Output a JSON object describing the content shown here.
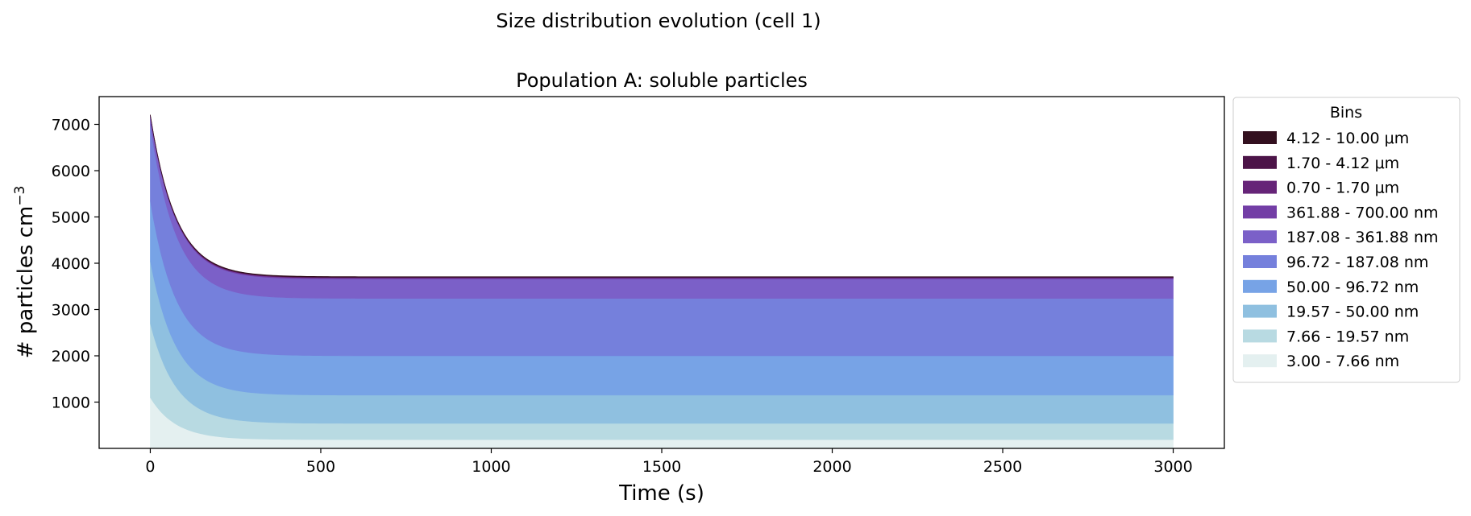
{
  "chart_data": {
    "type": "area",
    "stacked": true,
    "suptitle": "Size distribution evolution (cell 1)",
    "title": "Population A: soluble particles",
    "xlabel": "Time (s)",
    "ylabel_main": "# particles cm",
    "ylabel_sup": "−3",
    "xlim": [
      -150,
      3150
    ],
    "ylim": [
      0,
      7600
    ],
    "xticks": [
      0,
      500,
      1000,
      1500,
      2000,
      2500,
      3000
    ],
    "yticks": [
      1000,
      2000,
      3000,
      4000,
      5000,
      6000,
      7000
    ],
    "x_range": [
      0,
      3000
    ],
    "decay_tau_s": 75,
    "grid": false,
    "legend": {
      "title": "Bins",
      "placement": "outside-right"
    },
    "series": [
      {
        "name": "3.00 - 7.66 nm",
        "color": "#e4f0f0",
        "start": 1100,
        "end": 190
      },
      {
        "name": "7.66 - 19.57 nm",
        "color": "#b8dae2",
        "start": 1600,
        "end": 350
      },
      {
        "name": "19.57 - 50.00 nm",
        "color": "#8fc0e0",
        "start": 1350,
        "end": 610
      },
      {
        "name": "50.00 - 96.72 nm",
        "color": "#77a3e6",
        "start": 1300,
        "end": 850
      },
      {
        "name": "96.72 - 187.08 nm",
        "color": "#7580dc",
        "start": 1650,
        "end": 1240
      },
      {
        "name": "187.08 - 361.88 nm",
        "color": "#7b60c8",
        "start": 150,
        "end": 420
      },
      {
        "name": "361.88 - 700.00 nm",
        "color": "#733ea6",
        "start": 30,
        "end": 20
      },
      {
        "name": "0.70 - 1.70 μm",
        "color": "#662478",
        "start": 10,
        "end": 10
      },
      {
        "name": "1.70 - 4.12 μm",
        "color": "#4c1448",
        "start": 10,
        "end": 10
      },
      {
        "name": "4.12 - 10.00 μm",
        "color": "#33101f",
        "start": 10,
        "end": 10
      }
    ]
  }
}
